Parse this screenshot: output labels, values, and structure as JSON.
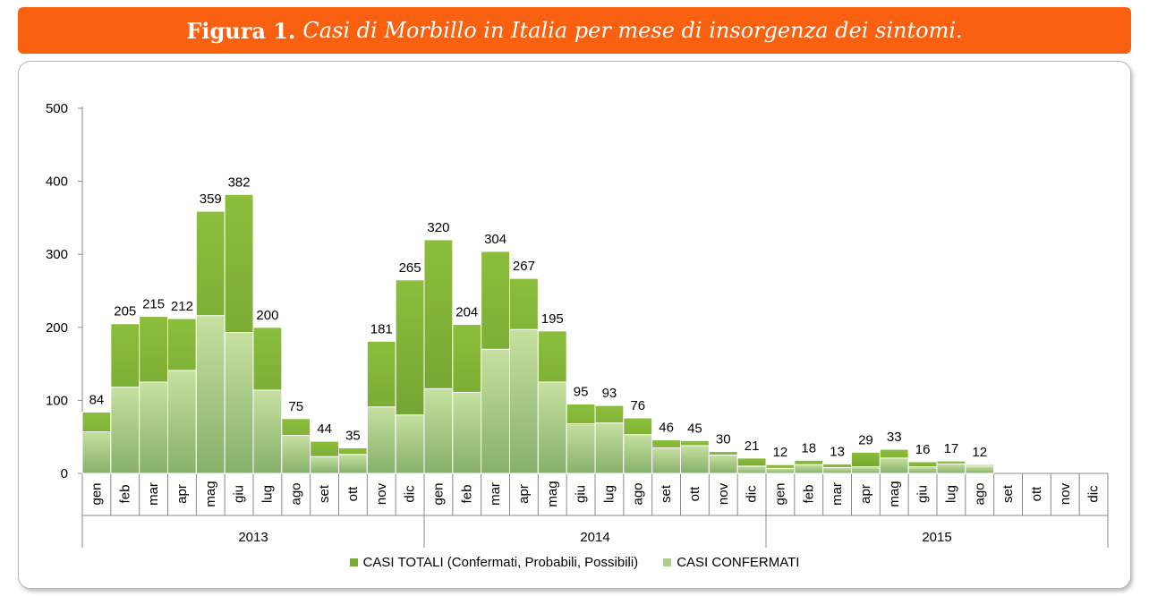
{
  "title": {
    "figure_number": "Figura 1.",
    "text": "Casi di Morbillo in Italia per mese di insorgenza dei sintomi."
  },
  "colors": {
    "title_bg": "#f96010",
    "totali_top": "#8cbe3c",
    "totali_bottom": "#6b9a2e",
    "confermati_top": "#c6e0a0",
    "confermati_bottom": "#86b06a"
  },
  "chart_data": {
    "type": "bar",
    "title": "",
    "xlabel": "",
    "ylabel": "",
    "ylim": [
      0,
      500
    ],
    "yticks": [
      0,
      100,
      200,
      300,
      400,
      500
    ],
    "grid": false,
    "legend_position": "bottom",
    "years": [
      {
        "label": "2013",
        "months": [
          "gen",
          "feb",
          "mar",
          "apr",
          "mag",
          "giu",
          "lug",
          "ago",
          "set",
          "ott",
          "nov",
          "dic"
        ]
      },
      {
        "label": "2014",
        "months": [
          "gen",
          "feb",
          "mar",
          "apr",
          "mag",
          "giu",
          "lug",
          "ago",
          "set",
          "ott",
          "nov",
          "dic"
        ]
      },
      {
        "label": "2015",
        "months": [
          "gen",
          "feb",
          "mar",
          "apr",
          "mag",
          "giu",
          "lug",
          "ago",
          "set",
          "ott",
          "nov",
          "dic"
        ]
      }
    ],
    "series": [
      {
        "name": "CASI TOTALI (Confermati, Probabili, Possibili)",
        "color": "#7aab34",
        "values": [
          84,
          205,
          215,
          212,
          359,
          382,
          200,
          75,
          44,
          35,
          181,
          265,
          320,
          204,
          304,
          267,
          195,
          95,
          93,
          76,
          46,
          45,
          30,
          21,
          12,
          18,
          13,
          29,
          33,
          16,
          17,
          12,
          null,
          null,
          null,
          null
        ]
      },
      {
        "name": "CASI CONFERMATI",
        "color": "#a9cf80",
        "values": [
          57,
          118,
          125,
          141,
          216,
          193,
          114,
          52,
          23,
          26,
          91,
          80,
          116,
          111,
          170,
          197,
          125,
          68,
          69,
          53,
          35,
          38,
          25,
          10,
          7,
          12,
          8,
          9,
          21,
          9,
          13,
          10,
          null,
          null,
          null,
          null
        ]
      }
    ]
  }
}
